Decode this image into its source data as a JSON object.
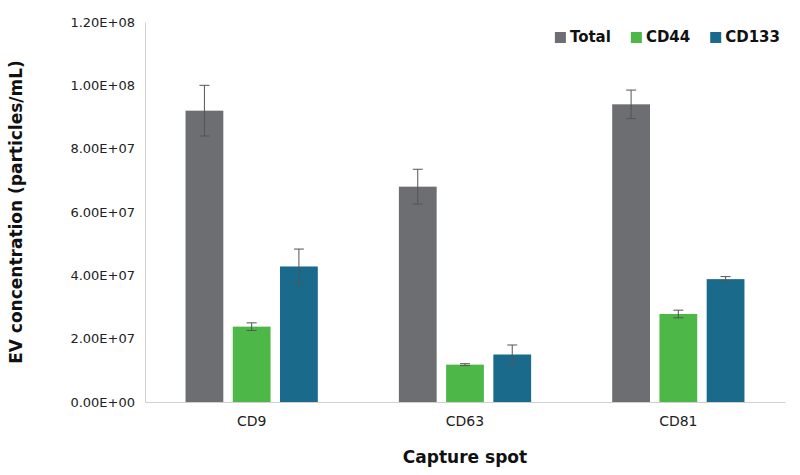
{
  "chart_data": {
    "type": "bar",
    "x_label": "Capture spot",
    "y_label": "EV concentration (particles/mL)",
    "categories": [
      "CD9",
      "CD63",
      "CD81"
    ],
    "series": [
      {
        "name": "Total",
        "color": "#6d6e71",
        "values": [
          92000000,
          68000000,
          94000000
        ],
        "errors": [
          8000000,
          5500000,
          4500000
        ]
      },
      {
        "name": "CD44",
        "color": "#4db848",
        "values": [
          23800000,
          11800000,
          27800000
        ],
        "errors": [
          1200000,
          300000,
          1200000
        ]
      },
      {
        "name": "CD133",
        "color": "#1a6a8c",
        "values": [
          42800000,
          15000000,
          38800000
        ],
        "errors": [
          5500000,
          3000000,
          800000
        ]
      }
    ],
    "ylim": [
      0,
      120000000
    ],
    "yticks": [
      {
        "value": 0,
        "label": "0.00E+00"
      },
      {
        "value": 20000000,
        "label": "2.00E+07"
      },
      {
        "value": 40000000,
        "label": "4.00E+07"
      },
      {
        "value": 60000000,
        "label": "6.00E+07"
      },
      {
        "value": 80000000,
        "label": "8.00E+07"
      },
      {
        "value": 100000000,
        "label": "1.00E+08"
      },
      {
        "value": 120000000,
        "label": "1.20E+08"
      }
    ],
    "grid": false,
    "legend": "top-right"
  }
}
